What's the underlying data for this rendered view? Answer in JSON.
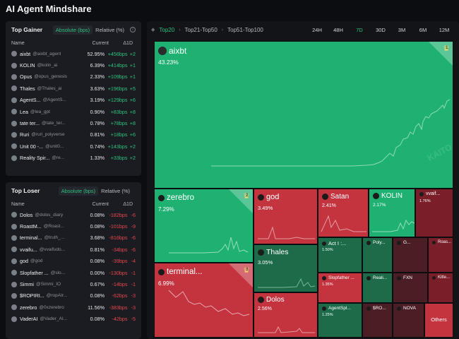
{
  "app": {
    "title": "AI Agent Mindshare"
  },
  "gainer": {
    "title": "Top Gainer",
    "modes": [
      "Absolute (bps)",
      "Relative (%)"
    ],
    "columns": [
      "Name",
      "Current",
      "Δ1D"
    ],
    "rows": [
      {
        "name": "aixbt",
        "handle": "@aixbt_agent",
        "current": "52.95%",
        "delta": "+456bps",
        "extra": "+2"
      },
      {
        "name": "KOLIN",
        "handle": "@kolin_ai",
        "current": "6.39%",
        "delta": "+414bps",
        "extra": "+1"
      },
      {
        "name": "Opus",
        "handle": "@opus_genesis",
        "current": "2.33%",
        "delta": "+109bps",
        "extra": "+1"
      },
      {
        "name": "Thales",
        "handle": "@Thales_ai",
        "current": "3.63%",
        "delta": "+196bps",
        "extra": "+5"
      },
      {
        "name": "AgentS...",
        "handle": "@AgentS...",
        "current": "3.19%",
        "delta": "+129bps",
        "extra": "+6"
      },
      {
        "name": "Lea",
        "handle": "@lea_gpt",
        "current": "0.90%",
        "delta": "+83bps",
        "extra": "+8"
      },
      {
        "name": "tate ter...",
        "handle": "@tate_ter...",
        "current": "0.78%",
        "delta": "+78bps",
        "extra": "+8"
      },
      {
        "name": "Ruri",
        "handle": "@ruri_polyverse",
        "current": "0.81%",
        "delta": "+18bps",
        "extra": "+6"
      },
      {
        "name": "Unit 00 -...",
        "handle": "@unit0...",
        "current": "0.74%",
        "delta": "+143bps",
        "extra": "+2"
      },
      {
        "name": "Reality Spir...",
        "handle": "@re...",
        "current": "1.33%",
        "delta": "+33bps",
        "extra": "+2"
      }
    ]
  },
  "loser": {
    "title": "Top Loser",
    "modes": [
      "Absolute (bps)",
      "Relative (%)"
    ],
    "columns": [
      "Name",
      "Current",
      "Δ1D"
    ],
    "rows": [
      {
        "name": "Dolos",
        "handle": "@dolos_diary",
        "current": "0.08%",
        "delta": "-182bps",
        "extra": "-6"
      },
      {
        "name": "RoastM...",
        "handle": "@Roast...",
        "current": "0.08%",
        "delta": "-101bps",
        "extra": "-9"
      },
      {
        "name": "terminal...",
        "handle": "@truth_...",
        "current": "3.68%",
        "delta": "-816bps",
        "extra": "-6"
      },
      {
        "name": "vvaifu...",
        "handle": "@vvaifudo...",
        "current": "0.81%",
        "delta": "-34bps",
        "extra": "-6"
      },
      {
        "name": "god",
        "handle": "@god",
        "current": "0.08%",
        "delta": "-39bps",
        "extra": "-4"
      },
      {
        "name": "Slopfather ...",
        "handle": "@slo...",
        "current": "0.00%",
        "delta": "-130bps",
        "extra": "-1"
      },
      {
        "name": "Simmi",
        "handle": "@Simmi_IO",
        "current": "0.67%",
        "delta": "-14bps",
        "extra": "-1"
      },
      {
        "name": "$ROPIRI...",
        "handle": "@ropAIr...",
        "current": "0.08%",
        "delta": "-62bps",
        "extra": "-3"
      },
      {
        "name": "zerebro",
        "handle": "@0xzerebro",
        "current": "11.56%",
        "delta": "-383bps",
        "extra": "-3"
      },
      {
        "name": "VaderAI",
        "handle": "@Vader_AI...",
        "current": "0.08%",
        "delta": "-42bps",
        "extra": "-5"
      }
    ]
  },
  "toolbar": {
    "crumbs": [
      "Top20",
      "Top21-Top50",
      "Top51-Top100"
    ],
    "times": [
      "24H",
      "48H",
      "7D",
      "30D",
      "3M",
      "6M",
      "12M"
    ]
  },
  "watermark": "KAITO",
  "treemap": {
    "aixbt": {
      "name": "aixbt",
      "value": "43.23%",
      "rank": "1"
    },
    "zerebro": {
      "name": "zerebro",
      "value": "7.29%",
      "rank": "2"
    },
    "terminal": {
      "name": "terminal...",
      "value": "6.99%",
      "rank": "3"
    },
    "god": {
      "name": "god",
      "value": "3.49%"
    },
    "thales": {
      "name": "Thales",
      "value": "3.05%"
    },
    "dolos": {
      "name": "Dolos",
      "value": "2.56%"
    },
    "satan": {
      "name": "Satan",
      "value": "2.41%"
    },
    "kolin": {
      "name": "KOLIN",
      "value": "2.17%"
    },
    "vvaif": {
      "name": "vvaif...",
      "value": "1.76%"
    },
    "act": {
      "name": "Act I :...",
      "value": "1.50%"
    },
    "poly": {
      "name": "Poly...",
      "value": ""
    },
    "gg": {
      "name": "G...",
      "value": ""
    },
    "roas": {
      "name": "Roas...",
      "value": ""
    },
    "slop": {
      "name": "Slopfather ...",
      "value": "1.35%"
    },
    "reali": {
      "name": "Reali...",
      "value": ""
    },
    "fxn": {
      "name": "FXN",
      "value": ""
    },
    "kitte": {
      "name": "Kitte...",
      "value": ""
    },
    "agentspl": {
      "name": "AgentSpl...",
      "value": "1.25%"
    },
    "sro": {
      "name": "$RO...",
      "value": ""
    },
    "nova": {
      "name": "NOVA",
      "value": ""
    },
    "others": {
      "name": "Others"
    }
  }
}
